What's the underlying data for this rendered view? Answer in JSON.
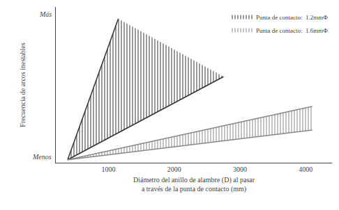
{
  "chart_data": {
    "type": "line",
    "title": "",
    "xlabel": "Diámetro del anillo de alambre (D) al pasar\na través de la punta de contacto (mm)",
    "ylabel": "Frecuencia de arcos inestables",
    "annotations": [
      {
        "text": "Más",
        "y": 1.0
      },
      {
        "text": "Menos",
        "y": 0.04
      }
    ],
    "xlim": [
      200,
      4400
    ],
    "xticks": [
      1000,
      2000,
      3000,
      4000
    ],
    "ylim": [
      0.0,
      1.05
    ],
    "tick_labels": "x",
    "grid": false,
    "legend": "upper right",
    "background_color": "#ffffff",
    "series": [
      {
        "name": "Punta de contacto:  1.2mmΦ",
        "color": "#333333",
        "x": [
          380,
          1150
        ],
        "values": [
          0.02,
          0.97
        ],
        "lower_x": [
          380,
          2750
        ],
        "lower_values": [
          0.02,
          0.58
        ]
      },
      {
        "name": "Punta de contacto:  1.6mmΦ",
        "color": "#888888",
        "x": [
          380,
          4100
        ],
        "values": [
          0.02,
          0.38
        ],
        "lower_x": [
          380,
          4100
        ],
        "lower_values": [
          0.02,
          0.22
        ]
      }
    ]
  }
}
